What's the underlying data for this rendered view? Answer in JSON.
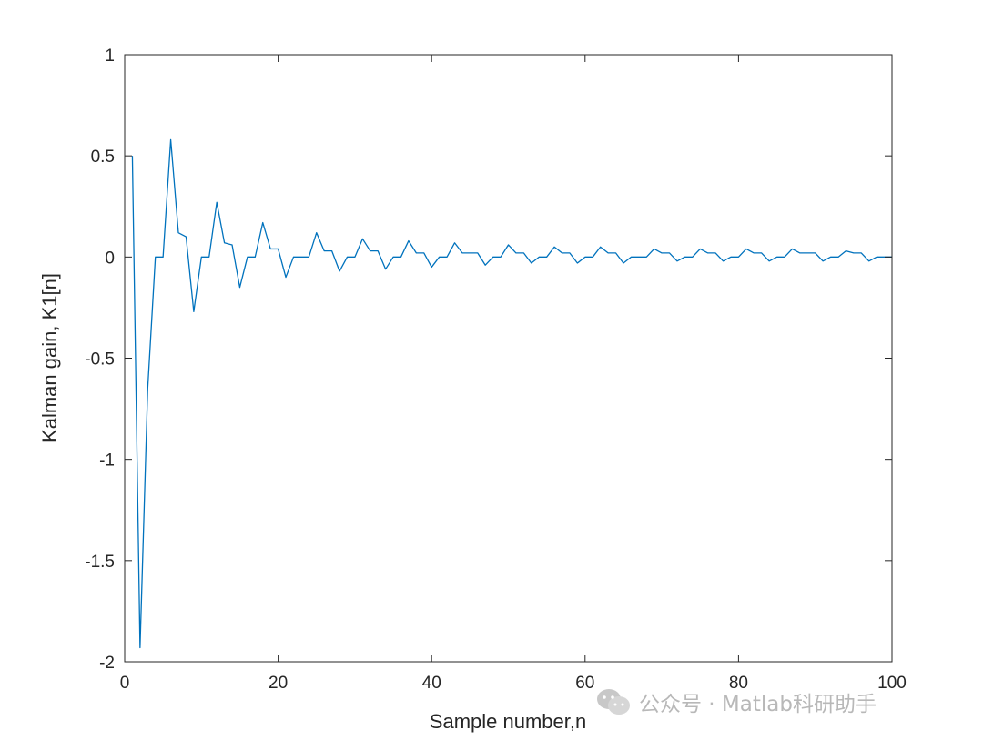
{
  "chart_data": {
    "type": "line",
    "title": "",
    "xlabel": "Sample number,n",
    "ylabel": "Kalman gain, K1[n]",
    "xlim": [
      0,
      100
    ],
    "ylim": [
      -2,
      1
    ],
    "xticks": [
      "0",
      "20",
      "40",
      "60",
      "80",
      "100"
    ],
    "yticks": [
      "1",
      "0.5",
      "0",
      "-0.5",
      "-1",
      "-1.5",
      "-2"
    ],
    "grid": false,
    "series": [
      {
        "color": "#0072BD",
        "x": [
          1,
          2,
          3,
          4,
          5,
          6,
          7,
          8,
          9,
          10,
          11,
          12,
          13,
          14,
          15,
          16,
          17,
          18,
          19,
          20,
          21,
          22,
          23,
          24,
          25,
          26,
          27,
          28,
          29,
          30,
          31,
          32,
          33,
          34,
          35,
          36,
          37,
          38,
          39,
          40,
          41,
          42,
          43,
          44,
          45,
          46,
          47,
          48,
          49,
          50,
          51,
          52,
          53,
          54,
          55,
          56,
          57,
          58,
          59,
          60,
          61,
          62,
          63,
          64,
          65,
          66,
          67,
          68,
          69,
          70,
          71,
          72,
          73,
          74,
          75,
          76,
          77,
          78,
          79,
          80,
          81,
          82,
          83,
          84,
          85,
          86,
          87,
          88,
          89,
          90,
          91,
          92,
          93,
          94,
          95,
          96,
          97,
          98,
          99,
          100
        ],
        "y": [
          0.5,
          -1.93,
          -0.65,
          0,
          0,
          0.58,
          0.12,
          0.1,
          -0.27,
          0,
          0,
          0.27,
          0.07,
          0.06,
          -0.15,
          0,
          0,
          0.17,
          0.04,
          0.04,
          -0.1,
          0,
          0,
          0,
          0.12,
          0.03,
          0.03,
          -0.07,
          0,
          0,
          0.09,
          0.03,
          0.03,
          -0.06,
          0,
          0,
          0.08,
          0.02,
          0.02,
          -0.05,
          0,
          0,
          0.07,
          0.02,
          0.02,
          0.02,
          -0.04,
          0,
          0,
          0.06,
          0.02,
          0.02,
          -0.03,
          0,
          0,
          0.05,
          0.02,
          0.02,
          -0.03,
          0,
          0,
          0.05,
          0.02,
          0.02,
          -0.03,
          0,
          0,
          0,
          0.04,
          0.02,
          0.02,
          -0.02,
          0,
          0,
          0.04,
          0.02,
          0.02,
          -0.02,
          0,
          0,
          0.04,
          0.02,
          0.02,
          -0.02,
          0,
          0,
          0.04,
          0.02,
          0.02,
          0.02,
          -0.02,
          0,
          0,
          0.03,
          0.02,
          0.02,
          -0.02,
          0,
          0,
          0
        ]
      }
    ]
  },
  "watermark": {
    "icon": "wechat-icon",
    "text": "公众号 · Matlab科研助手"
  }
}
